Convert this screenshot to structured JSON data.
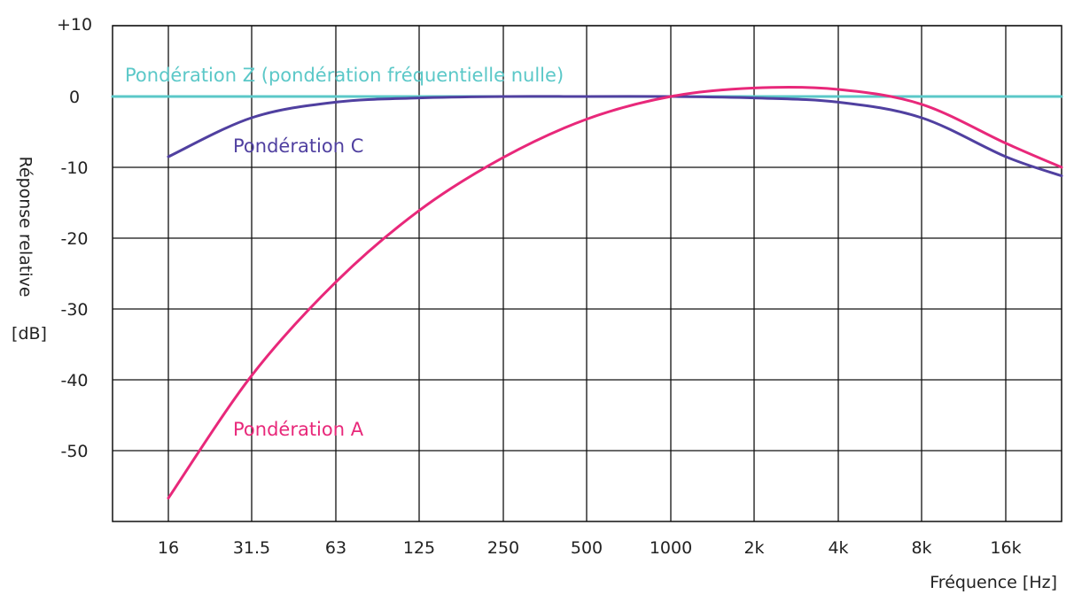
{
  "chart_data": {
    "type": "line",
    "xlabel": "Fréquence [Hz]",
    "ylabel_line1": "Réponse relative",
    "ylabel_line2": "[dB]",
    "x_ticks": [
      "16",
      "31.5",
      "63",
      "125",
      "250",
      "500",
      "1000",
      "2k",
      "4k",
      "8k",
      "16k"
    ],
    "y_ticks": [
      "+10",
      "0",
      "-10",
      "-20",
      "-30",
      "-40",
      "-50"
    ],
    "ylim": [
      -60,
      10
    ],
    "grid": true,
    "series": [
      {
        "name": "Pondération Z (pondération fréquentielle nulle)",
        "color": "#5bc8c8",
        "x": [
          "<16",
          "16",
          "31.5",
          "63",
          "125",
          "250",
          "500",
          "1000",
          "2k",
          "4k",
          "8k",
          "16k",
          ">16k"
        ],
        "y": [
          0,
          0,
          0,
          0,
          0,
          0,
          0,
          0,
          0,
          0,
          0,
          0,
          0
        ]
      },
      {
        "name": "Pondération C",
        "color": "#5040a0",
        "x": [
          "16",
          "31.5",
          "63",
          "125",
          "250",
          "500",
          "1000",
          "2k",
          "4k",
          "8k",
          "16k",
          ">16k"
        ],
        "y": [
          -8.5,
          -3.0,
          -0.8,
          -0.2,
          0,
          0,
          0,
          -0.2,
          -0.8,
          -3.0,
          -8.5,
          -11.2
        ]
      },
      {
        "name": "Pondération A",
        "color": "#e8287a",
        "x": [
          "16",
          "31.5",
          "63",
          "125",
          "250",
          "500",
          "1000",
          "2k",
          "4k",
          "8k",
          "16k",
          ">16k"
        ],
        "y": [
          -56.7,
          -39.4,
          -26.2,
          -16.1,
          -8.6,
          -3.2,
          0,
          1.2,
          1.0,
          -1.1,
          -6.6,
          -10.0
        ]
      }
    ]
  }
}
